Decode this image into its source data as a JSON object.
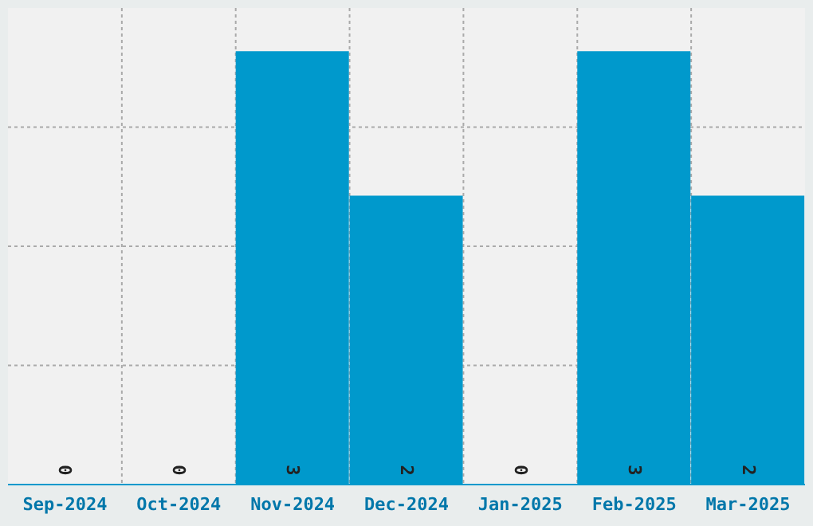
{
  "chart_data": {
    "type": "bar",
    "categories": [
      "Sep-2024",
      "Oct-2024",
      "Nov-2024",
      "Dec-2024",
      "Jan-2025",
      "Feb-2025",
      "Mar-2025"
    ],
    "values": [
      0,
      0,
      3,
      2,
      0,
      3,
      2
    ],
    "color": "#0099cc",
    "data_labels": true,
    "grid": true,
    "tick_labels": "x"
  }
}
